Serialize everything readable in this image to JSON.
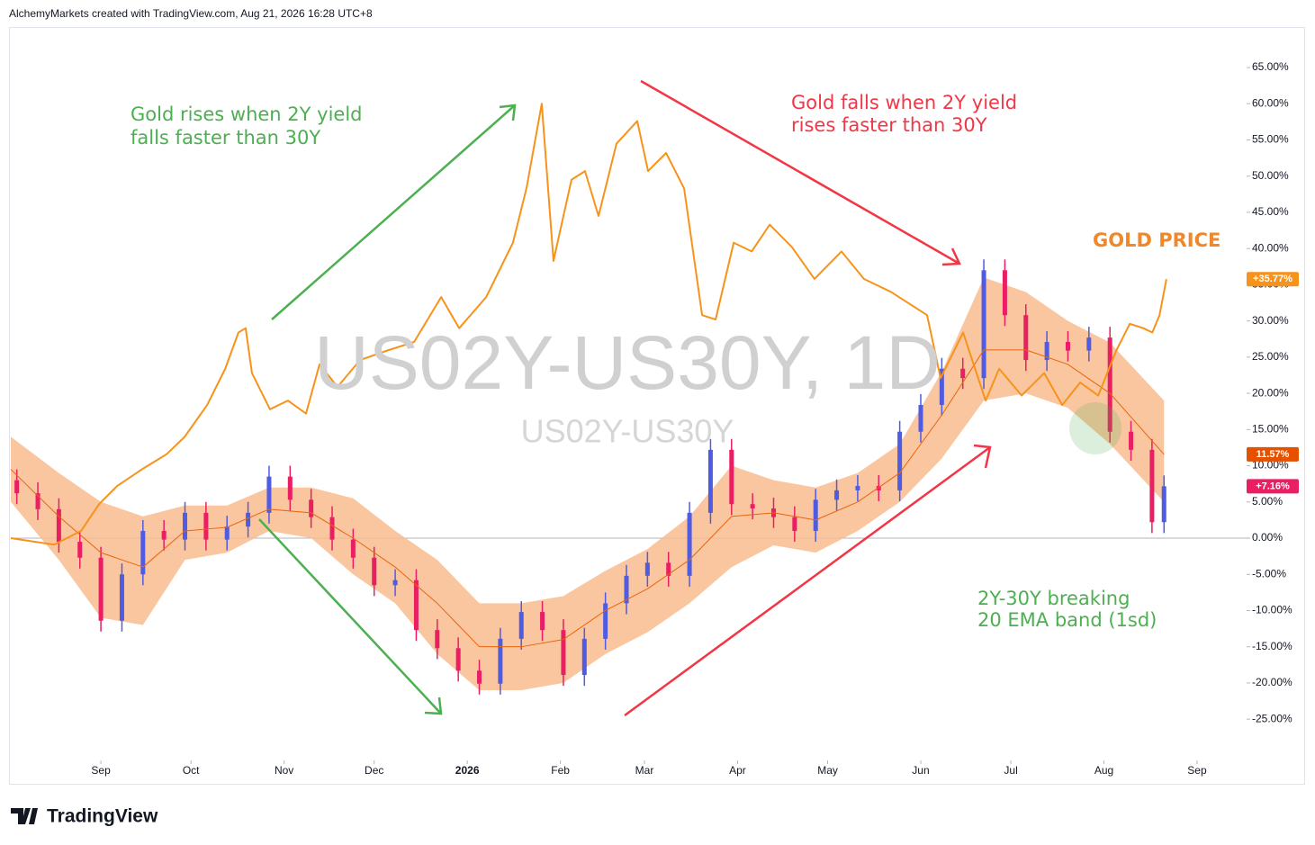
{
  "header": "AlchemyMarkets created with TradingView.com, Aug 21, 2026 16:28 UTC+8",
  "footer_logo": "TradingView",
  "chart_data": {
    "type": "candlestick",
    "watermark": "US02Y-US30Y, 1D",
    "watermark_sub": "US02Y-US30Y",
    "annotations": {
      "gold_rises": [
        "Gold rises when 2Y yield",
        "falls faster than 30Y"
      ],
      "gold_falls": [
        "Gold falls when 2Y yield",
        "rises faster than 30Y"
      ],
      "gold_price": "GOLD PRICE",
      "breaking": [
        "2Y-30Y breaking",
        "20 EMA band (1sd)"
      ]
    },
    "xlim": [
      -30,
      380
    ],
    "xticks": [
      {
        "value": 0,
        "label": "Sep"
      },
      {
        "value": 30,
        "label": "Oct"
      },
      {
        "value": 61,
        "label": "Nov"
      },
      {
        "value": 91,
        "label": "Dec"
      },
      {
        "value": 122,
        "label": "2026"
      },
      {
        "value": 153,
        "label": "Feb"
      },
      {
        "value": 181,
        "label": "Mar"
      },
      {
        "value": 212,
        "label": "Apr"
      },
      {
        "value": 242,
        "label": "May"
      },
      {
        "value": 273,
        "label": "Jun"
      },
      {
        "value": 303,
        "label": "Jul"
      },
      {
        "value": 334,
        "label": "Aug"
      },
      {
        "value": 365,
        "label": "Sep"
      }
    ],
    "ylim": [
      -30.7,
      70.6
    ],
    "yticks": [
      {
        "value": -25,
        "label": "-25.00%"
      },
      {
        "value": -20,
        "label": "-20.00%"
      },
      {
        "value": -15,
        "label": "-15.00%"
      },
      {
        "value": -10,
        "label": "-10.00%"
      },
      {
        "value": -5,
        "label": "-5.00%"
      },
      {
        "value": 0,
        "label": "0.00%"
      },
      {
        "value": 5,
        "label": "5.00%"
      },
      {
        "value": 10,
        "label": "10.00%"
      },
      {
        "value": 15,
        "label": "15.00%"
      },
      {
        "value": 20,
        "label": "20.00%"
      },
      {
        "value": 25,
        "label": "25.00%"
      },
      {
        "value": 30,
        "label": "30.00%"
      },
      {
        "value": 35,
        "label": "35.00%"
      },
      {
        "value": 40,
        "label": "40.00%"
      },
      {
        "value": 45,
        "label": "45.00%"
      },
      {
        "value": 50,
        "label": "50.00%"
      },
      {
        "value": 55,
        "label": "55.00%"
      },
      {
        "value": 60,
        "label": "60.00%"
      },
      {
        "value": 65,
        "label": "65.00%"
      }
    ],
    "zero_line": true,
    "color_up": "#4f5be0",
    "color_down": "#e91e63",
    "x": [
      -28,
      -21,
      -14,
      -7,
      0,
      7,
      14,
      21,
      28,
      35,
      42,
      49,
      56,
      63,
      70,
      77,
      84,
      91,
      98,
      105,
      112,
      119,
      126,
      133,
      140,
      147,
      154,
      161,
      168,
      175,
      182,
      189,
      196,
      203,
      210,
      217,
      224,
      231,
      238,
      245,
      252,
      259,
      266,
      273,
      280,
      287,
      294,
      301,
      308,
      315,
      322,
      329,
      336,
      343,
      350,
      354
    ],
    "open": [
      8,
      6.2,
      4,
      -0.5,
      -2.7,
      -11.4,
      -5,
      1,
      -0.2,
      3.5,
      -0.2,
      1.6,
      3.5,
      8.5,
      5.3,
      2.9,
      -0.2,
      -2.7,
      -6.5,
      -5.8,
      -12.7,
      -15.2,
      -18.3,
      -20.1,
      -13.9,
      -10.2,
      -12.7,
      -18.9,
      -13.9,
      -9,
      -5.2,
      -3.4,
      -5.2,
      3.5,
      12.2,
      4.7,
      4.1,
      2.9,
      1,
      5.3,
      6.6,
      7.2,
      6.6,
      14.7,
      18.4,
      23.4,
      22.1,
      37,
      30.8,
      24.6,
      27.1,
      25.9,
      27.7,
      14.7,
      12.2,
      2.2
    ],
    "high": [
      9.5,
      7.7,
      5.5,
      1,
      -1.2,
      -3.5,
      2.5,
      2.5,
      5,
      5,
      3.1,
      5,
      10,
      10,
      6.8,
      4.4,
      1.3,
      -1.2,
      -4.3,
      -4.3,
      -11.2,
      -13.7,
      -16.8,
      -12.4,
      -8.7,
      -8.7,
      -11.2,
      -12.4,
      -7.5,
      -3.7,
      -1.9,
      -1.9,
      5,
      13.7,
      13.7,
      6.2,
      5.6,
      4.4,
      6.8,
      8.1,
      8.7,
      8.7,
      16.2,
      19.9,
      24.9,
      24.9,
      38.5,
      38.5,
      32.3,
      28.6,
      28.6,
      29.2,
      29.2,
      16.2,
      13.7,
      8.66
    ],
    "low": [
      4.7,
      2.5,
      -2,
      -4.2,
      -12.9,
      -12.9,
      -6.5,
      -1.7,
      -1.7,
      -1.7,
      -1.7,
      0.1,
      2,
      3.8,
      1.4,
      -1.7,
      -4.2,
      -8,
      -8,
      -14.2,
      -16.7,
      -19.8,
      -21.6,
      -21.6,
      -15.4,
      -14.2,
      -20.4,
      -20.4,
      -15.4,
      -10.5,
      -6.7,
      -6.7,
      -6.7,
      2,
      3.2,
      2.6,
      1.4,
      -0.5,
      -0.5,
      3.8,
      5.1,
      5.1,
      5.1,
      13.2,
      16.9,
      20.6,
      20.6,
      29.3,
      23.1,
      23.1,
      24.4,
      24.4,
      13.2,
      10.7,
      0.7,
      0.7
    ],
    "close": [
      6.2,
      4,
      -0.5,
      -2.7,
      -11.4,
      -5,
      1,
      -0.2,
      3.5,
      -0.2,
      1.6,
      3.5,
      8.5,
      5.3,
      2.9,
      -0.2,
      -2.7,
      -6.5,
      -5.8,
      -12.7,
      -15.2,
      -18.3,
      -20.1,
      -13.9,
      -10.2,
      -12.7,
      -18.9,
      -13.9,
      -9,
      -5.2,
      -3.4,
      -5.2,
      3.5,
      12.2,
      4.7,
      4.1,
      2.9,
      1,
      5.3,
      6.6,
      7.2,
      6.6,
      14.7,
      18.4,
      23.4,
      22.1,
      37,
      30.8,
      24.6,
      27.1,
      25.9,
      27.7,
      14.7,
      12.2,
      2.2,
      7.16
    ],
    "band": {
      "type": "band",
      "color": "#f9bc8f",
      "x": [
        -30,
        -14,
        0,
        14,
        28,
        42,
        56,
        70,
        84,
        98,
        112,
        126,
        140,
        154,
        168,
        182,
        196,
        210,
        224,
        238,
        252,
        266,
        280,
        294,
        308,
        322,
        336,
        354
      ],
      "upper": [
        14,
        9,
        5,
        3,
        4.5,
        4.5,
        7,
        7,
        5.5,
        1,
        -3,
        -9,
        -9,
        -8,
        -4.5,
        -1.5,
        3,
        10,
        8,
        7,
        9,
        13,
        23,
        36,
        34,
        30,
        27,
        19
      ],
      "lower": [
        5,
        -3,
        -11,
        -12,
        -3,
        -2,
        1,
        0,
        -5,
        -9,
        -16,
        -21,
        -21,
        -20,
        -16,
        -13,
        -9,
        -4,
        -1,
        -2,
        1,
        5,
        11,
        19,
        20,
        18,
        13,
        5
      ]
    },
    "lines": [
      {
        "type": "line",
        "color": "#e8650c",
        "width": 1,
        "x": [
          -30,
          -14,
          0,
          14,
          28,
          42,
          56,
          70,
          84,
          98,
          112,
          126,
          140,
          154,
          168,
          182,
          196,
          210,
          224,
          238,
          252,
          266,
          280,
          294,
          308,
          322,
          336,
          354
        ],
        "values": [
          9.5,
          3,
          -2,
          -4,
          1,
          1.5,
          4,
          3.5,
          0,
          -4,
          -9,
          -15,
          -15,
          -14,
          -10,
          -7,
          -3,
          3,
          3.5,
          2.5,
          5,
          9,
          17,
          26,
          26,
          24,
          20,
          11.57
        ]
      },
      {
        "type": "line",
        "color": "#f7931a",
        "width": 2,
        "x": [
          -30,
          -15.6,
          -6.6,
          -0.6,
          5.4,
          14.4,
          21.9,
          27.9,
          35.4,
          41.4,
          45.8,
          48.2,
          50.3,
          56.3,
          62.3,
          68.3,
          72.8,
          78.8,
          86.3,
          95.3,
          104.3,
          113.3,
          119.3,
          128.3,
          137.2,
          141.7,
          146.8,
          150.7,
          156.7,
          161.2,
          165.7,
          171.7,
          178.6,
          182.2,
          188.2,
          194.2,
          200.2,
          204.7,
          210.7,
          216.7,
          222.7,
          230.1,
          237.6,
          246.6,
          254.1,
          263.1,
          275.1,
          279.6,
          287.1,
          294.6,
          299.1,
          306.6,
          314.1,
          320.1,
          326.1,
          332.1,
          338.1,
          342.6,
          347.1,
          350.1,
          352.5,
          354.8
        ],
        "values": [
          0,
          -0.9,
          1,
          4.7,
          7.2,
          9.7,
          11.6,
          14,
          18.4,
          23.4,
          28.4,
          29,
          22.8,
          17.8,
          19,
          17.2,
          24,
          20.9,
          24.6,
          25.9,
          27.1,
          33.3,
          29,
          33.3,
          40.8,
          48.3,
          60,
          38.3,
          49.5,
          50.7,
          44.5,
          54.5,
          57.6,
          50.7,
          53.2,
          48.3,
          30.8,
          30.2,
          40.8,
          39.6,
          43.3,
          40.2,
          35.8,
          39.6,
          35.8,
          34,
          30.8,
          22.1,
          28.4,
          19,
          23.4,
          19.7,
          22.8,
          18.4,
          21.5,
          19.7,
          25.9,
          29.6,
          29,
          28.4,
          30.8,
          35.77
        ]
      }
    ],
    "price_labels": [
      {
        "value": 35.77,
        "label": "+35.77%",
        "color": "#f7931a"
      },
      {
        "value": 11.57,
        "label": "11.57%",
        "color": "#e65100"
      },
      {
        "value": 7.16,
        "label": "+7.16%",
        "color": "#e91e63"
      }
    ]
  }
}
